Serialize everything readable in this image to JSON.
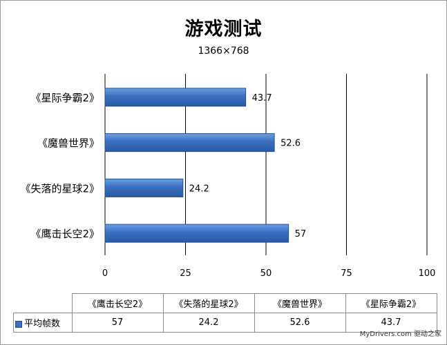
{
  "chart_data": {
    "type": "bar",
    "orientation": "horizontal",
    "title": "游戏测试",
    "subtitle": "1366×768",
    "categories": [
      "《鹰击长空2》",
      "《失落的星球2》",
      "《魔兽世界》",
      "《星际争霸2》"
    ],
    "series": [
      {
        "name": "平均帧数",
        "values": [
          57,
          24.2,
          52.6,
          43.7
        ]
      }
    ],
    "value_labels": [
      "57",
      "24.2",
      "52.6",
      "43.7"
    ],
    "xlim": [
      0,
      100
    ],
    "x_ticks": [
      "0",
      "25",
      "50",
      "75",
      "100"
    ],
    "grid": "vertical",
    "legend": "data-table",
    "bar_color": "#3a6fbf"
  },
  "table": {
    "headers": [
      "《鹰击长空2》",
      "《失落的星球2》",
      "《魔兽世界》",
      "《星际争霸2》"
    ],
    "row_label": "平均帧数",
    "row_values": [
      "57",
      "24.2",
      "52.6",
      "43.7"
    ]
  },
  "watermark": "MyDrivers.com 驱动之家"
}
